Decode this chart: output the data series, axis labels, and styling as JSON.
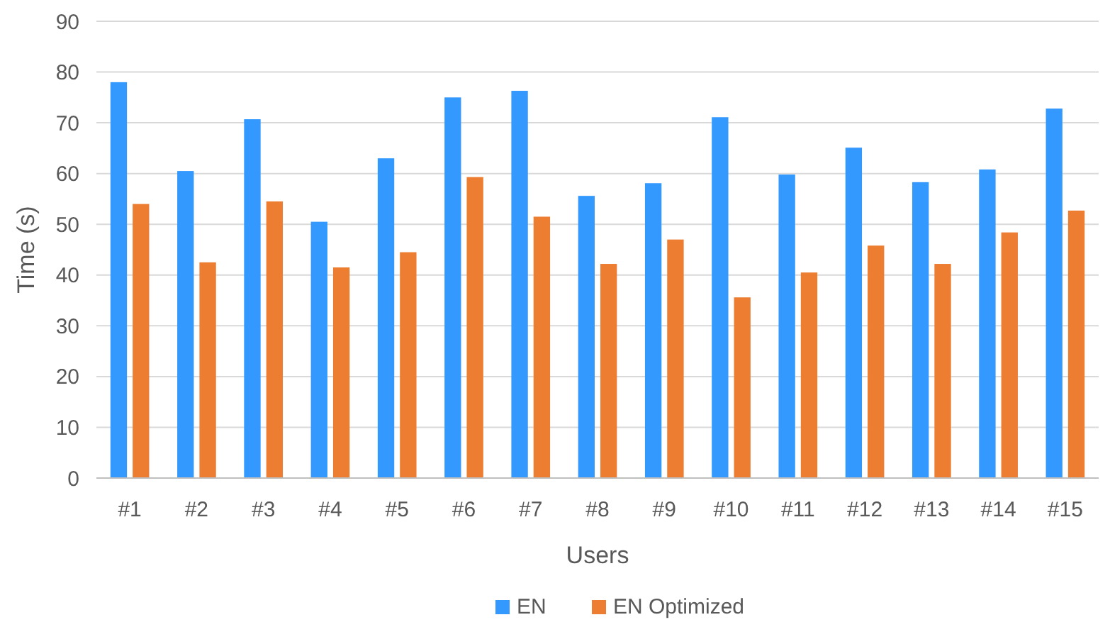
{
  "chart_data": {
    "type": "bar",
    "xlabel": "Users",
    "ylabel": "Time (s)",
    "categories": [
      "#1",
      "#2",
      "#3",
      "#4",
      "#5",
      "#6",
      "#7",
      "#8",
      "#9",
      "#10",
      "#11",
      "#12",
      "#13",
      "#14",
      "#15"
    ],
    "series": [
      {
        "name": "EN",
        "color": "#3399ff",
        "values": [
          78,
          60.5,
          70.7,
          50.5,
          63,
          75,
          76.3,
          55.6,
          58.1,
          71.1,
          59.8,
          65.1,
          58.3,
          60.8,
          72.8
        ]
      },
      {
        "name": "EN Optimized",
        "color": "#ed7d31",
        "values": [
          54,
          42.5,
          54.5,
          41.5,
          44.5,
          59.3,
          51.5,
          42.2,
          47,
          35.6,
          40.5,
          45.8,
          42.2,
          48.4,
          52.7
        ]
      }
    ],
    "ylim": [
      0,
      90
    ],
    "yticks": [
      0,
      10,
      20,
      30,
      40,
      50,
      60,
      70,
      80,
      90
    ],
    "grid": "y",
    "legend": "bottom"
  }
}
